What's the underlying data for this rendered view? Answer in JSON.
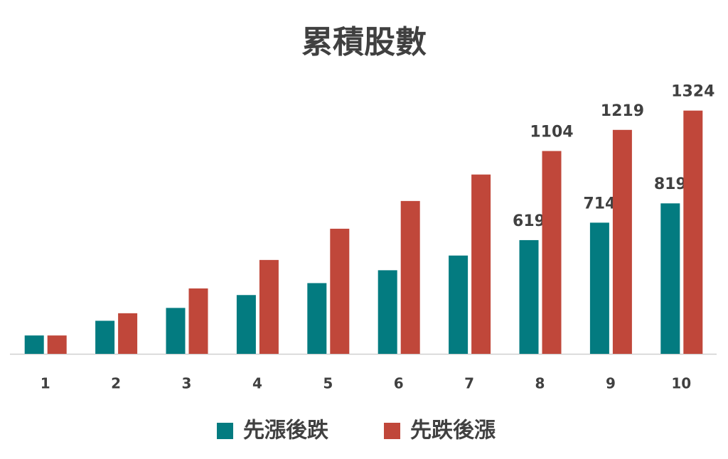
{
  "chart_data": {
    "type": "bar",
    "title": "累積股數",
    "categories": [
      "1",
      "2",
      "3",
      "4",
      "5",
      "6",
      "7",
      "8",
      "9",
      "10"
    ],
    "series": [
      {
        "name": "先漲後跌",
        "color": "#037b80",
        "values": [
          100,
          180,
          250,
          320,
          385,
          455,
          535,
          619,
          714,
          819
        ],
        "value_labels": [
          null,
          null,
          null,
          null,
          null,
          null,
          null,
          "619",
          "714",
          "819"
        ]
      },
      {
        "name": "先跌後漲",
        "color": "#c0473a",
        "values": [
          100,
          221,
          356,
          511,
          681,
          832,
          976,
          1104,
          1219,
          1324
        ],
        "value_labels": [
          null,
          null,
          null,
          null,
          null,
          null,
          null,
          "1104",
          "1219",
          "1324"
        ]
      }
    ],
    "ylim": [
      0,
      1400
    ],
    "legend": "bottom"
  }
}
